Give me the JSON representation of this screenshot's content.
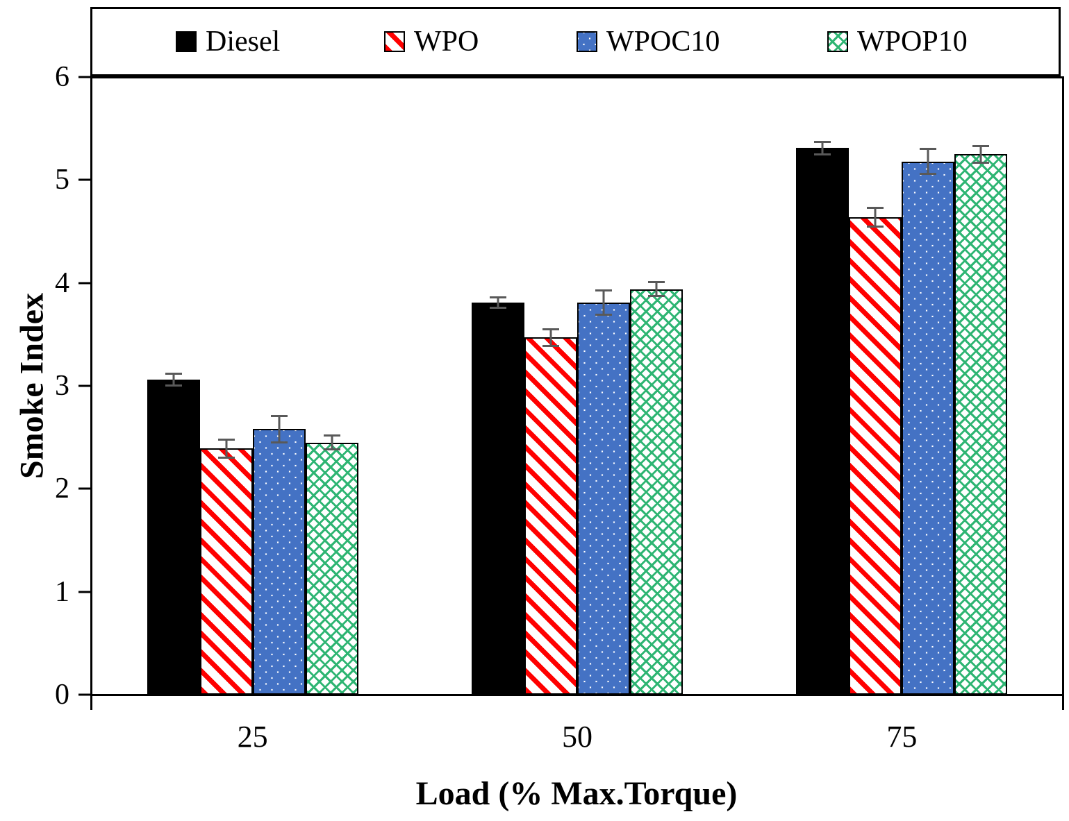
{
  "chart_data": {
    "type": "bar",
    "xlabel": "Load (% Max.Torque)",
    "ylabel": "Smoke Index",
    "categories": [
      "25",
      "50",
      "75"
    ],
    "series": [
      {
        "name": "Diesel",
        "pattern": "solid-black",
        "values": [
          3.06,
          3.81,
          5.31
        ],
        "errors": [
          0.07,
          0.06,
          0.07
        ]
      },
      {
        "name": "WPO",
        "pattern": "red-stripes",
        "values": [
          2.39,
          3.47,
          4.64
        ],
        "errors": [
          0.1,
          0.09,
          0.1
        ]
      },
      {
        "name": "WPOC10",
        "pattern": "blue-spheres",
        "values": [
          2.58,
          3.81,
          5.18
        ],
        "errors": [
          0.14,
          0.13,
          0.13
        ]
      },
      {
        "name": "WPOP10",
        "pattern": "green-weave",
        "values": [
          2.45,
          3.94,
          5.25
        ],
        "errors": [
          0.08,
          0.08,
          0.09
        ]
      }
    ],
    "ylim": [
      0,
      6
    ],
    "ytick_step": 1,
    "yticks": [
      "0",
      "1",
      "2",
      "3",
      "4",
      "5",
      "6"
    ],
    "grid": false,
    "legend_position": "top",
    "colors": {
      "diesel": "#000000",
      "wpo": "#ff0000",
      "wpoc10": "#4472c4",
      "wpop10": "#2eb573",
      "error_bar": "#595959",
      "frame": "#000000",
      "background": "#ffffff"
    }
  }
}
